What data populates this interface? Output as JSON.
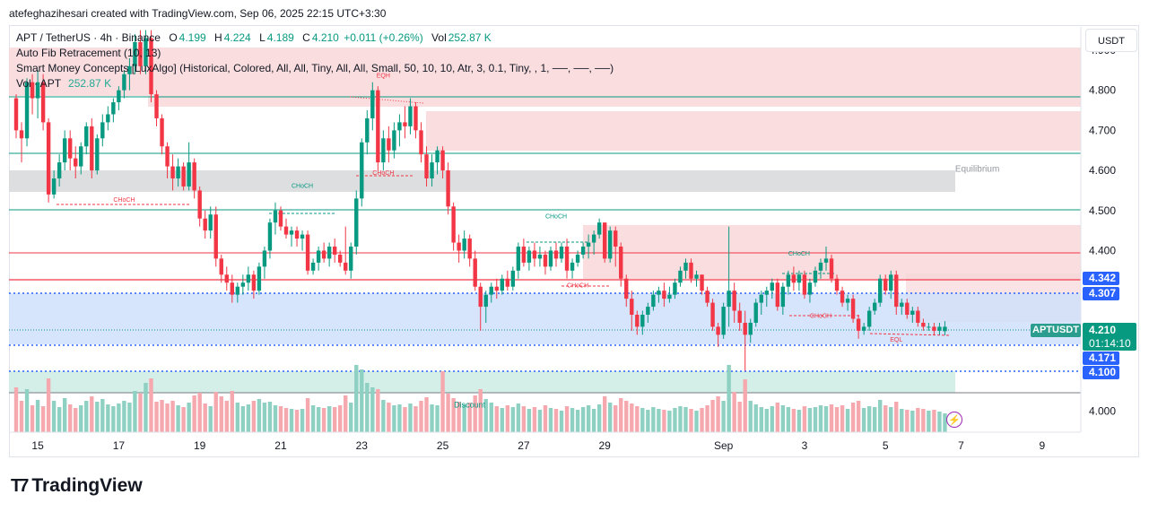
{
  "header": {
    "byline": "atefeghazihesari created with TradingView.com, Sep 06, 2025 22:15 UTC+3:30"
  },
  "legend": {
    "symbol": "APT / TetherUS · 4h · Binance",
    "o_key": "O",
    "o": "4.199",
    "h_key": "H",
    "h": "4.224",
    "l_key": "L",
    "l": "4.189",
    "c_key": "C",
    "c": "4.210",
    "change": "+0.011 (+0.26%)",
    "vol_key": "Vol",
    "vol": "252.87 K",
    "fib": "Auto Fib Retracement (10, 13)",
    "smc": "Smart Money Concepts [LuxAlgo] (Historical, Colored, All, All, Tiny, All, All, Small, 50, 10, 10, Atr, 3, 0.1, Tiny, , 1, ──, ──, ──)",
    "vol_label": "Vol · APT",
    "vol_value": "252.87 K"
  },
  "currency": "USDT",
  "price_tags": {
    "t1": "4.342",
    "t2": "4.307",
    "ticker": "APTUSDT",
    "last": "4.210",
    "countdown": "01:14:10",
    "t3": "4.171",
    "t4": "4.100"
  },
  "colors": {
    "up": "#089981",
    "down": "#f23645",
    "premium": "#f8d7d9",
    "discount": "#cfece5",
    "equilibrium": "#d9dadd",
    "fvg_blue": "#cfe0fb"
  },
  "logo": "TradingView",
  "chart_data": {
    "type": "candlestick",
    "title": "APT / TetherUS · 4h · Binance",
    "ylim": [
      3.947,
      4.958
    ],
    "y_ticks": [
      4.0,
      4.1,
      4.2,
      4.3,
      4.4,
      4.5,
      4.6,
      4.7,
      4.8,
      4.9
    ],
    "y_tick_labels": [
      "4.000",
      "",
      "",
      "",
      "4.400",
      "4.500",
      "4.600",
      "4.700",
      "4.800",
      "4.900"
    ],
    "x_tick_labels": [
      {
        "label": "15",
        "bar": 4
      },
      {
        "label": "17",
        "bar": 19
      },
      {
        "label": "19",
        "bar": 34
      },
      {
        "label": "21",
        "bar": 49
      },
      {
        "label": "23",
        "bar": 64
      },
      {
        "label": "25",
        "bar": 79
      },
      {
        "label": "27",
        "bar": 94
      },
      {
        "label": "29",
        "bar": 109
      },
      {
        "label": "Sep",
        "bar": 131
      },
      {
        "label": "3",
        "bar": 146
      },
      {
        "label": "5",
        "bar": 161
      },
      {
        "label": "7",
        "bar": 175
      },
      {
        "label": "9",
        "bar": 190
      }
    ],
    "annotations": [
      {
        "text": "EQH",
        "x_bar": 68,
        "y": 4.832
      },
      {
        "text": "CHoCH",
        "x_bar": 20,
        "y": 4.522
      },
      {
        "text": "CHoCH",
        "x_bar": 53,
        "y": 4.557
      },
      {
        "text": "CHoCH",
        "x_bar": 68,
        "y": 4.589
      },
      {
        "text": "CHoCH",
        "x_bar": 100,
        "y": 4.48
      },
      {
        "text": "CHoCH",
        "x_bar": 104,
        "y": 4.308
      },
      {
        "text": "CHoCH",
        "x_bar": 145,
        "y": 4.388
      },
      {
        "text": "CHoCH",
        "x_bar": 149,
        "y": 4.232
      },
      {
        "text": "EQL",
        "x_bar": 163,
        "y": 4.173
      },
      {
        "text": "Equilibrium",
        "x_bar": 178,
        "y": 4.597
      },
      {
        "text": "Discount",
        "x_bar": 84,
        "y": 4.008
      }
    ],
    "candles": [
      [
        4.78,
        4.79,
        4.68,
        4.7,
        100
      ],
      [
        4.7,
        4.72,
        4.62,
        4.68,
        70
      ],
      [
        4.68,
        4.83,
        4.66,
        4.82,
        96
      ],
      [
        4.82,
        4.84,
        4.74,
        4.78,
        60
      ],
      [
        4.78,
        4.85,
        4.73,
        4.82,
        72
      ],
      [
        4.82,
        4.84,
        4.7,
        4.72,
        58
      ],
      [
        4.72,
        4.73,
        4.52,
        4.54,
        120
      ],
      [
        4.54,
        4.6,
        4.53,
        4.58,
        70
      ],
      [
        4.58,
        4.64,
        4.56,
        4.62,
        56
      ],
      [
        4.62,
        4.7,
        4.6,
        4.68,
        76
      ],
      [
        4.68,
        4.7,
        4.6,
        4.63,
        62
      ],
      [
        4.63,
        4.66,
        4.58,
        4.61,
        54
      ],
      [
        4.61,
        4.67,
        4.59,
        4.66,
        60
      ],
      [
        4.66,
        4.72,
        4.64,
        4.71,
        70
      ],
      [
        4.71,
        4.73,
        4.58,
        4.6,
        80
      ],
      [
        4.6,
        4.69,
        4.59,
        4.68,
        68
      ],
      [
        4.68,
        4.74,
        4.66,
        4.72,
        74
      ],
      [
        4.72,
        4.76,
        4.7,
        4.74,
        62
      ],
      [
        4.74,
        4.78,
        4.72,
        4.77,
        58
      ],
      [
        4.77,
        4.81,
        4.75,
        4.8,
        64
      ],
      [
        4.8,
        4.85,
        4.78,
        4.84,
        70
      ],
      [
        4.84,
        4.88,
        4.8,
        4.86,
        66
      ],
      [
        4.86,
        4.94,
        4.84,
        4.92,
        92
      ],
      [
        4.92,
        4.95,
        4.84,
        4.86,
        86
      ],
      [
        4.86,
        4.95,
        4.84,
        4.93,
        110
      ],
      [
        4.93,
        4.95,
        4.77,
        4.79,
        120
      ],
      [
        4.79,
        4.8,
        4.71,
        4.73,
        68
      ],
      [
        4.73,
        4.74,
        4.64,
        4.66,
        72
      ],
      [
        4.66,
        4.67,
        4.58,
        4.61,
        64
      ],
      [
        4.61,
        4.64,
        4.55,
        4.58,
        70
      ],
      [
        4.58,
        4.63,
        4.56,
        4.61,
        60
      ],
      [
        4.61,
        4.62,
        4.55,
        4.56,
        56
      ],
      [
        4.56,
        4.67,
        4.55,
        4.62,
        66
      ],
      [
        4.62,
        4.63,
        4.53,
        4.55,
        82
      ],
      [
        4.55,
        4.56,
        4.46,
        4.48,
        88
      ],
      [
        4.48,
        4.5,
        4.43,
        4.45,
        64
      ],
      [
        4.45,
        4.51,
        4.43,
        4.49,
        58
      ],
      [
        4.49,
        4.51,
        4.36,
        4.38,
        90
      ],
      [
        4.38,
        4.39,
        4.32,
        4.34,
        80
      ],
      [
        4.34,
        4.36,
        4.3,
        4.32,
        70
      ],
      [
        4.32,
        4.34,
        4.27,
        4.29,
        92
      ],
      [
        4.29,
        4.32,
        4.27,
        4.31,
        66
      ],
      [
        4.31,
        4.34,
        4.29,
        4.32,
        58
      ],
      [
        4.32,
        4.36,
        4.3,
        4.34,
        62
      ],
      [
        4.34,
        4.35,
        4.28,
        4.3,
        70
      ],
      [
        4.3,
        4.37,
        4.29,
        4.36,
        74
      ],
      [
        4.36,
        4.41,
        4.33,
        4.4,
        66
      ],
      [
        4.4,
        4.48,
        4.38,
        4.47,
        68
      ],
      [
        4.47,
        4.52,
        4.44,
        4.5,
        60
      ],
      [
        4.5,
        4.51,
        4.45,
        4.46,
        58
      ],
      [
        4.46,
        4.48,
        4.43,
        4.44,
        54
      ],
      [
        4.44,
        4.46,
        4.41,
        4.45,
        52
      ],
      [
        4.45,
        4.46,
        4.41,
        4.43,
        50
      ],
      [
        4.43,
        4.45,
        4.4,
        4.44,
        52
      ],
      [
        4.44,
        4.45,
        4.34,
        4.35,
        76
      ],
      [
        4.35,
        4.38,
        4.34,
        4.37,
        60
      ],
      [
        4.37,
        4.41,
        4.35,
        4.4,
        56
      ],
      [
        4.4,
        4.42,
        4.37,
        4.38,
        54
      ],
      [
        4.38,
        4.42,
        4.36,
        4.41,
        58
      ],
      [
        4.41,
        4.43,
        4.37,
        4.39,
        56
      ],
      [
        4.39,
        4.4,
        4.36,
        4.37,
        60
      ],
      [
        4.37,
        4.46,
        4.34,
        4.35,
        82
      ],
      [
        4.35,
        4.42,
        4.33,
        4.41,
        66
      ],
      [
        4.41,
        4.55,
        4.39,
        4.53,
        150
      ],
      [
        4.53,
        4.68,
        4.51,
        4.67,
        140
      ],
      [
        4.67,
        4.75,
        4.64,
        4.73,
        110
      ],
      [
        4.73,
        4.82,
        4.7,
        4.8,
        100
      ],
      [
        4.8,
        4.81,
        4.6,
        4.62,
        96
      ],
      [
        4.62,
        4.7,
        4.6,
        4.68,
        72
      ],
      [
        4.68,
        4.71,
        4.62,
        4.65,
        66
      ],
      [
        4.65,
        4.72,
        4.63,
        4.7,
        60
      ],
      [
        4.7,
        4.74,
        4.66,
        4.72,
        62
      ],
      [
        4.72,
        4.76,
        4.68,
        4.71,
        56
      ],
      [
        4.71,
        4.78,
        4.69,
        4.76,
        64
      ],
      [
        4.76,
        4.77,
        4.68,
        4.7,
        58
      ],
      [
        4.7,
        4.72,
        4.62,
        4.64,
        70
      ],
      [
        4.64,
        4.66,
        4.56,
        4.58,
        78
      ],
      [
        4.58,
        4.64,
        4.56,
        4.62,
        62
      ],
      [
        4.62,
        4.66,
        4.59,
        4.65,
        60
      ],
      [
        4.65,
        4.66,
        4.58,
        4.6,
        136
      ],
      [
        4.6,
        4.62,
        4.49,
        4.51,
        86
      ],
      [
        4.51,
        4.52,
        4.4,
        4.42,
        76
      ],
      [
        4.42,
        4.44,
        4.37,
        4.4,
        68
      ],
      [
        4.4,
        4.45,
        4.38,
        4.43,
        62
      ],
      [
        4.43,
        4.44,
        4.36,
        4.38,
        66
      ],
      [
        4.38,
        4.4,
        4.3,
        4.31,
        82
      ],
      [
        4.31,
        4.32,
        4.2,
        4.26,
        96
      ],
      [
        4.26,
        4.3,
        4.22,
        4.29,
        74
      ],
      [
        4.29,
        4.32,
        4.27,
        4.31,
        66
      ],
      [
        4.31,
        4.33,
        4.28,
        4.3,
        58
      ],
      [
        4.3,
        4.34,
        4.29,
        4.33,
        54
      ],
      [
        4.33,
        4.35,
        4.3,
        4.31,
        60
      ],
      [
        4.31,
        4.36,
        4.3,
        4.35,
        56
      ],
      [
        4.35,
        4.42,
        4.33,
        4.41,
        64
      ],
      [
        4.41,
        4.43,
        4.36,
        4.37,
        58
      ],
      [
        4.37,
        4.41,
        4.35,
        4.4,
        52
      ],
      [
        4.4,
        4.42,
        4.36,
        4.38,
        56
      ],
      [
        4.38,
        4.41,
        4.36,
        4.39,
        50
      ],
      [
        4.39,
        4.4,
        4.34,
        4.36,
        60
      ],
      [
        4.36,
        4.41,
        4.35,
        4.4,
        54
      ],
      [
        4.4,
        4.42,
        4.36,
        4.38,
        52
      ],
      [
        4.38,
        4.42,
        4.37,
        4.41,
        48
      ],
      [
        4.41,
        4.43,
        4.33,
        4.35,
        58
      ],
      [
        4.35,
        4.38,
        4.33,
        4.37,
        54
      ],
      [
        4.37,
        4.4,
        4.36,
        4.39,
        50
      ],
      [
        4.39,
        4.42,
        4.38,
        4.41,
        56
      ],
      [
        4.41,
        4.44,
        4.38,
        4.42,
        60
      ],
      [
        4.42,
        4.45,
        4.39,
        4.44,
        52
      ],
      [
        4.44,
        4.48,
        4.43,
        4.47,
        62
      ],
      [
        4.47,
        4.47,
        4.37,
        4.38,
        80
      ],
      [
        4.38,
        4.46,
        4.37,
        4.45,
        66
      ],
      [
        4.45,
        4.46,
        4.36,
        4.41,
        60
      ],
      [
        4.41,
        4.42,
        4.31,
        4.33,
        76
      ],
      [
        4.33,
        4.34,
        4.26,
        4.28,
        70
      ],
      [
        4.28,
        4.3,
        4.2,
        4.24,
        64
      ],
      [
        4.24,
        4.25,
        4.19,
        4.21,
        58
      ],
      [
        4.21,
        4.25,
        4.19,
        4.24,
        54
      ],
      [
        4.24,
        4.27,
        4.22,
        4.26,
        50
      ],
      [
        4.26,
        4.3,
        4.25,
        4.29,
        56
      ],
      [
        4.29,
        4.31,
        4.27,
        4.3,
        52
      ],
      [
        4.3,
        4.32,
        4.26,
        4.28,
        50
      ],
      [
        4.28,
        4.31,
        4.27,
        4.29,
        48
      ],
      [
        4.29,
        4.33,
        4.28,
        4.32,
        54
      ],
      [
        4.32,
        4.36,
        4.31,
        4.35,
        58
      ],
      [
        4.35,
        4.38,
        4.33,
        4.37,
        56
      ],
      [
        4.37,
        4.38,
        4.32,
        4.33,
        52
      ],
      [
        4.33,
        4.35,
        4.31,
        4.34,
        48
      ],
      [
        4.34,
        4.34,
        4.29,
        4.3,
        54
      ],
      [
        4.3,
        4.31,
        4.26,
        4.27,
        60
      ],
      [
        4.27,
        4.28,
        4.2,
        4.21,
        72
      ],
      [
        4.21,
        4.22,
        4.16,
        4.19,
        80
      ],
      [
        4.19,
        4.27,
        4.18,
        4.26,
        70
      ],
      [
        4.26,
        4.46,
        4.21,
        4.3,
        150
      ],
      [
        4.3,
        4.32,
        4.22,
        4.25,
        90
      ],
      [
        4.25,
        4.27,
        4.2,
        4.22,
        68
      ],
      [
        4.22,
        4.25,
        4.1,
        4.19,
        118
      ],
      [
        4.19,
        4.23,
        4.17,
        4.22,
        70
      ],
      [
        4.22,
        4.28,
        4.21,
        4.27,
        62
      ],
      [
        4.27,
        4.3,
        4.24,
        4.29,
        56
      ],
      [
        4.29,
        4.31,
        4.26,
        4.3,
        52
      ],
      [
        4.3,
        4.33,
        4.28,
        4.32,
        58
      ],
      [
        4.32,
        4.33,
        4.25,
        4.26,
        66
      ],
      [
        4.26,
        4.32,
        4.24,
        4.31,
        60
      ],
      [
        4.31,
        4.35,
        4.29,
        4.34,
        56
      ],
      [
        4.34,
        4.36,
        4.3,
        4.32,
        52
      ],
      [
        4.32,
        4.35,
        4.3,
        4.34,
        50
      ],
      [
        4.34,
        4.35,
        4.28,
        4.29,
        58
      ],
      [
        4.29,
        4.33,
        4.27,
        4.32,
        54
      ],
      [
        4.32,
        4.36,
        4.31,
        4.35,
        56
      ],
      [
        4.35,
        4.38,
        4.33,
        4.37,
        60
      ],
      [
        4.37,
        4.41,
        4.35,
        4.38,
        58
      ],
      [
        4.38,
        4.39,
        4.32,
        4.33,
        62
      ],
      [
        4.33,
        4.34,
        4.29,
        4.3,
        56
      ],
      [
        4.3,
        4.31,
        4.26,
        4.27,
        60
      ],
      [
        4.27,
        4.29,
        4.25,
        4.28,
        52
      ],
      [
        4.28,
        4.29,
        4.22,
        4.23,
        66
      ],
      [
        4.23,
        4.24,
        4.18,
        4.2,
        70
      ],
      [
        4.2,
        4.22,
        4.19,
        4.21,
        54
      ],
      [
        4.21,
        4.26,
        4.2,
        4.25,
        58
      ],
      [
        4.25,
        4.28,
        4.24,
        4.27,
        56
      ],
      [
        4.27,
        4.34,
        4.26,
        4.33,
        72
      ],
      [
        4.33,
        4.34,
        4.29,
        4.3,
        60
      ],
      [
        4.3,
        4.35,
        4.28,
        4.34,
        56
      ],
      [
        4.34,
        4.35,
        4.24,
        4.26,
        68
      ],
      [
        4.26,
        4.28,
        4.24,
        4.27,
        52
      ],
      [
        4.27,
        4.28,
        4.23,
        4.24,
        50
      ],
      [
        4.24,
        4.26,
        4.22,
        4.25,
        48
      ],
      [
        4.25,
        4.26,
        4.21,
        4.22,
        54
      ],
      [
        4.22,
        4.23,
        4.2,
        4.21,
        52
      ],
      [
        4.21,
        4.22,
        4.2,
        4.21,
        48
      ],
      [
        4.21,
        4.22,
        4.19,
        4.2,
        50
      ],
      [
        4.2,
        4.22,
        4.19,
        4.21,
        46
      ],
      [
        4.199,
        4.224,
        4.189,
        4.21,
        42
      ]
    ]
  }
}
